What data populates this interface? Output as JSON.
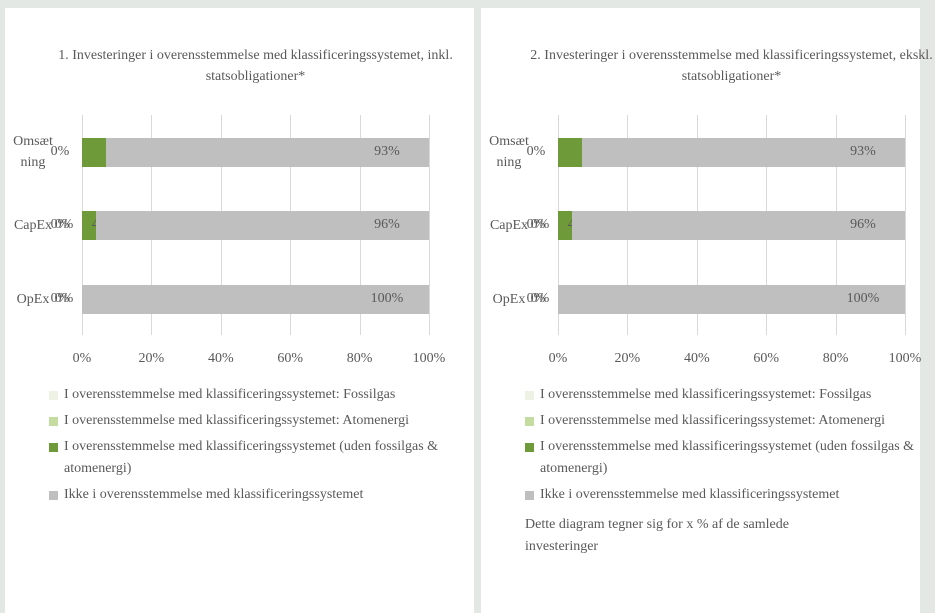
{
  "chart_data": [
    {
      "type": "bar",
      "orientation": "horizontal",
      "stacked": true,
      "title": "1. Investeringer i overensstemmelse med klassificeringssystemet, inkl. statsobligationer*",
      "categories": [
        "Omsætning",
        "CapEx",
        "OpEx"
      ],
      "xlim": [
        0,
        100
      ],
      "xticks": [
        {
          "value": 0,
          "label": "0%"
        },
        {
          "value": 20,
          "label": "20%"
        },
        {
          "value": 40,
          "label": "40%"
        },
        {
          "value": 60,
          "label": "60%"
        },
        {
          "value": 80,
          "label": "80%"
        },
        {
          "value": 100,
          "label": "100%"
        }
      ],
      "grid": true,
      "series": [
        {
          "name": "I overensstemmelse med klassificeringssystemet: Fossilgas",
          "color": "#eef2e4",
          "values": [
            0,
            0,
            0
          ],
          "value_labels": [
            "0%",
            "0%",
            "0%"
          ]
        },
        {
          "name": "I overensstemmelse med klassificeringssystemet: Atomenergi",
          "color": "#c5dca0",
          "values": [
            0,
            0,
            0
          ],
          "value_labels": [
            null,
            "0%",
            "0%"
          ]
        },
        {
          "name": "I overensstemmelse med klassificeringssystemet (uden fossilgas & atomenergi)",
          "color": "#6f9a3a",
          "values": [
            7,
            4,
            0
          ],
          "value_labels": [
            null,
            "4%",
            null
          ]
        },
        {
          "name": "Ikke i overensstemmelse med klassificeringssystemet",
          "color": "#bfbfbf",
          "values": [
            93,
            96,
            100
          ],
          "value_labels": [
            "93%",
            "96%",
            "100%"
          ]
        }
      ]
    },
    {
      "type": "bar",
      "orientation": "horizontal",
      "stacked": true,
      "title": "2. Investeringer i overensstemmelse med klassificeringssystemet, ekskl. statsobligationer*",
      "categories": [
        "Omsætning",
        "CapEx",
        "OpEx"
      ],
      "xlim": [
        0,
        100
      ],
      "xticks": [
        {
          "value": 0,
          "label": "0%"
        },
        {
          "value": 20,
          "label": "20%"
        },
        {
          "value": 40,
          "label": "40%"
        },
        {
          "value": 60,
          "label": "60%"
        },
        {
          "value": 80,
          "label": "80%"
        },
        {
          "value": 100,
          "label": "100%"
        }
      ],
      "grid": true,
      "series": [
        {
          "name": "I overensstemmelse med klassificeringssystemet: Fossilgas",
          "color": "#eef2e4",
          "values": [
            0,
            0,
            0
          ],
          "value_labels": [
            "0%",
            "0%",
            "0%"
          ]
        },
        {
          "name": "I overensstemmelse med klassificeringssystemet: Atomenergi",
          "color": "#c5dca0",
          "values": [
            0,
            0,
            0
          ],
          "value_labels": [
            null,
            "0%",
            "0%"
          ]
        },
        {
          "name": "I overensstemmelse med klassificeringssystemet (uden fossilgas & atomenergi)",
          "color": "#6f9a3a",
          "values": [
            7,
            4,
            0
          ],
          "value_labels": [
            null,
            "4%",
            null
          ]
        },
        {
          "name": "Ikke i overensstemmelse med klassificeringssystemet",
          "color": "#bfbfbf",
          "values": [
            93,
            96,
            100
          ],
          "value_labels": [
            "93%",
            "96%",
            "100%"
          ]
        }
      ],
      "note": "Dette diagram tegner sig for x % af de samlede investeringer"
    }
  ]
}
